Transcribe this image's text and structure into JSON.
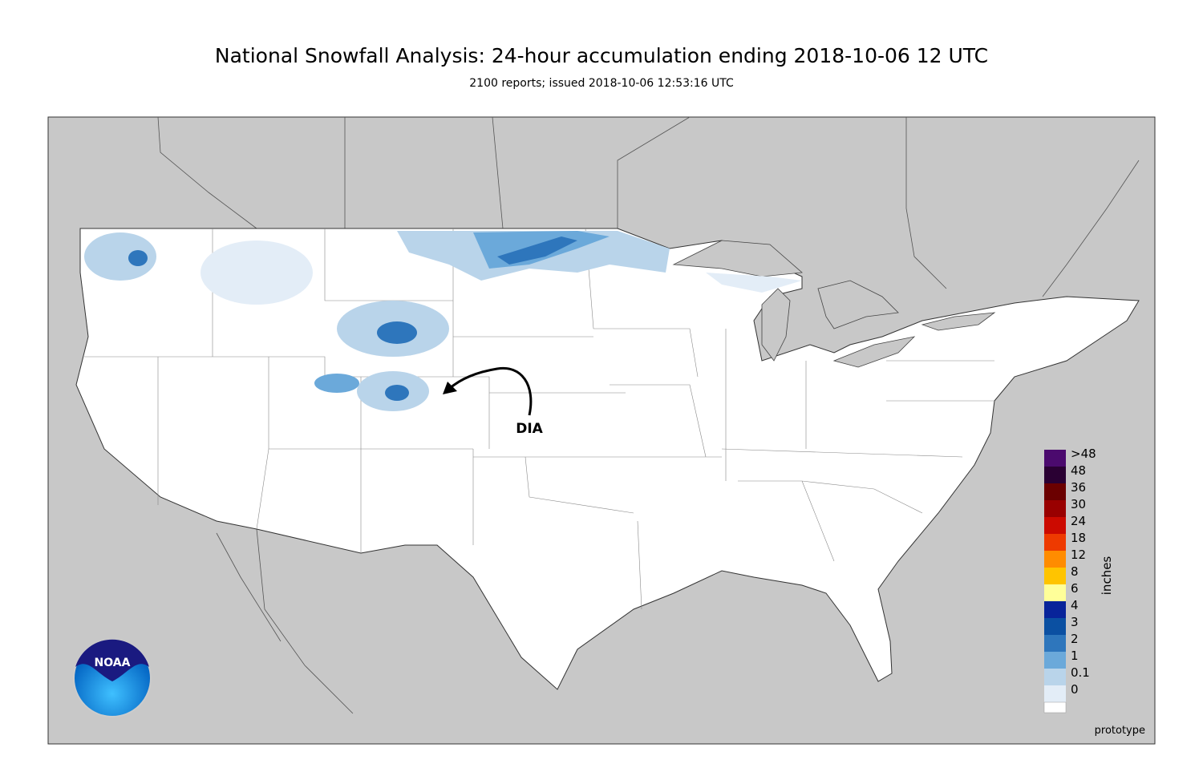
{
  "header": {
    "title": "National Snowfall Analysis: 24-hour accumulation ending 2018-10-06 12 UTC",
    "subtitle": "2100 reports; issued 2018-10-06 12:53:16 UTC"
  },
  "map": {
    "annotation": "DIA",
    "footnote": "prototype",
    "logo": "NOAA"
  },
  "legend": {
    "unit": "inches",
    "levels": [
      {
        "label": ">48",
        "color": "#4b0a6e"
      },
      {
        "label": "48",
        "color": "#2a0033"
      },
      {
        "label": "36",
        "color": "#6b0000"
      },
      {
        "label": "30",
        "color": "#990000"
      },
      {
        "label": "24",
        "color": "#cc0a00"
      },
      {
        "label": "18",
        "color": "#ee3a00"
      },
      {
        "label": "12",
        "color": "#ff8c00"
      },
      {
        "label": "8",
        "color": "#ffc400"
      },
      {
        "label": "6",
        "color": "#ffff99"
      },
      {
        "label": "4",
        "color": "#08249a"
      },
      {
        "label": "3",
        "color": "#0b50a2"
      },
      {
        "label": "2",
        "color": "#2e76bc"
      },
      {
        "label": "1",
        "color": "#6ba9da"
      },
      {
        "label": "0.1",
        "color": "#b9d4ea"
      },
      {
        "label": "0",
        "color": "#e3edf7"
      }
    ]
  }
}
